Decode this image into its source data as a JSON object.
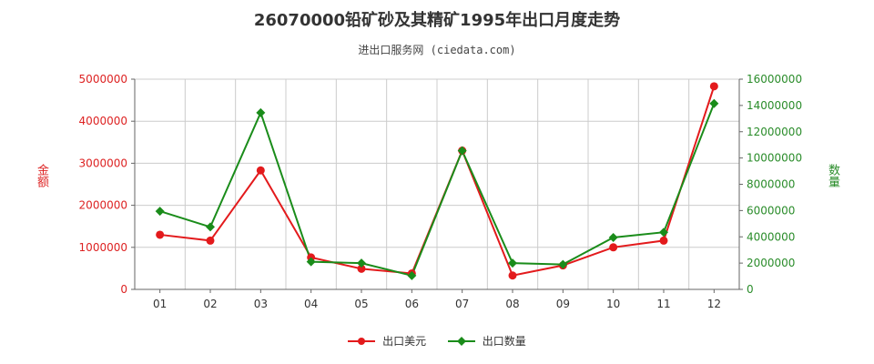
{
  "header": {
    "title": "26070000铅矿砂及其精矿1995年出口月度走势",
    "subtitle": "进出口服务网 (ciedata.com)"
  },
  "colors": {
    "usd": "#e31a1c",
    "qty": "#1a8c1a",
    "grid": "#cccccc",
    "axis": "#666666",
    "left_axis_text": "#dd2222",
    "right_axis_text": "#2a8c2a"
  },
  "chart_data": {
    "type": "line",
    "title": "26070000铅矿砂及其精矿1995年出口月度走势",
    "categories": [
      "01",
      "02",
      "03",
      "04",
      "05",
      "06",
      "07",
      "08",
      "09",
      "10",
      "11",
      "12"
    ],
    "y_left": {
      "label": "金额",
      "ylim": [
        0,
        5000000
      ],
      "ticks": [
        "0",
        "1000000",
        "2000000",
        "3000000",
        "4000000",
        "5000000"
      ]
    },
    "y_right": {
      "label": "数量",
      "ylim": [
        0,
        16000000
      ],
      "ticks": [
        "0",
        "2000000",
        "4000000",
        "6000000",
        "8000000",
        "10000000",
        "12000000",
        "14000000",
        "16000000"
      ]
    },
    "series": [
      {
        "name": "出口美元",
        "axis": "left",
        "values": [
          1300000,
          1160000,
          2830000,
          760000,
          490000,
          380000,
          3300000,
          330000,
          570000,
          1000000,
          1160000,
          4830000
        ]
      },
      {
        "name": "出口数量",
        "axis": "right",
        "values": [
          5950000,
          4750000,
          13450000,
          2100000,
          2000000,
          1050000,
          10550000,
          2000000,
          1900000,
          3950000,
          4350000,
          14150000
        ]
      }
    ],
    "grid": true,
    "legend": "bottom-center"
  }
}
